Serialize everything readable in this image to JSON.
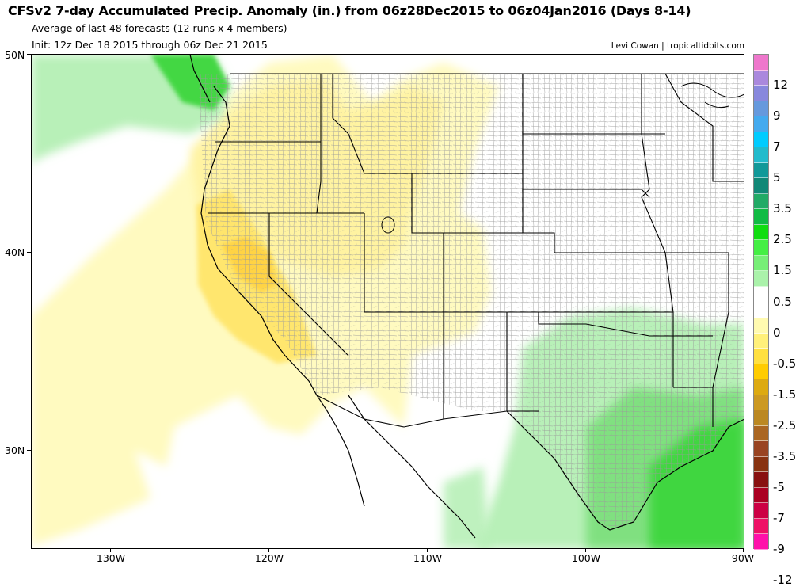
{
  "header": {
    "title": "CFSv2 7-day Accumulated Precip. Anomaly (in.) from 06z28Dec2015 to 06z04Jan2016 (Days 8-14)",
    "subtitle": "Average of last 48 forecasts (12 runs x 4 members)",
    "init": "Init: 12z Dec 18 2015 through 06z Dec 21 2015",
    "credit": "Levi Cowan | tropicaltidbits.com"
  },
  "map": {
    "region": "Western and Central United States",
    "lat_labels": [
      "50N",
      "40N",
      "30N"
    ],
    "lon_labels": [
      "130W",
      "120W",
      "110W",
      "100W",
      "90W"
    ],
    "colors": {
      "land": "#ffffff",
      "border": "#000000",
      "county": "#8a8a8a",
      "dry_light": "#fffac0",
      "dry_mid": "#fff3a0",
      "dry_strong": "#ffe56a",
      "dry_core": "#ffd23f",
      "wet_light": "#b8f0b8",
      "wet_mid": "#7ee07e",
      "wet_strong": "#3ed63e",
      "wet_core": "#14c814"
    }
  },
  "colorbar": {
    "labels": [
      "12",
      "9",
      "7",
      "5",
      "3.5",
      "2.5",
      "1.5",
      "0.5",
      "0",
      "-0.5",
      "-1.5",
      "-2.5",
      "-3.5",
      "-5",
      "-7",
      "-9",
      "-12"
    ],
    "colors": [
      "#ee77cc",
      "#aa88dd",
      "#8888dd",
      "#6699dd",
      "#44aaee",
      "#00ccff",
      "#22bbcc",
      "#119999",
      "#118877",
      "#22aa66",
      "#11bb44",
      "#11dd11",
      "#44ee44",
      "#77ee77",
      "#aaf2aa",
      "#ffffff",
      "#ffffff",
      "#fffab0",
      "#fff07a",
      "#ffe040",
      "#ffcc00",
      "#ddaa11",
      "#cc9922",
      "#bb8822",
      "#aa6622",
      "#994422",
      "#883311",
      "#881111",
      "#aa0022",
      "#cc0044",
      "#ee1166",
      "#ff11aa"
    ]
  }
}
